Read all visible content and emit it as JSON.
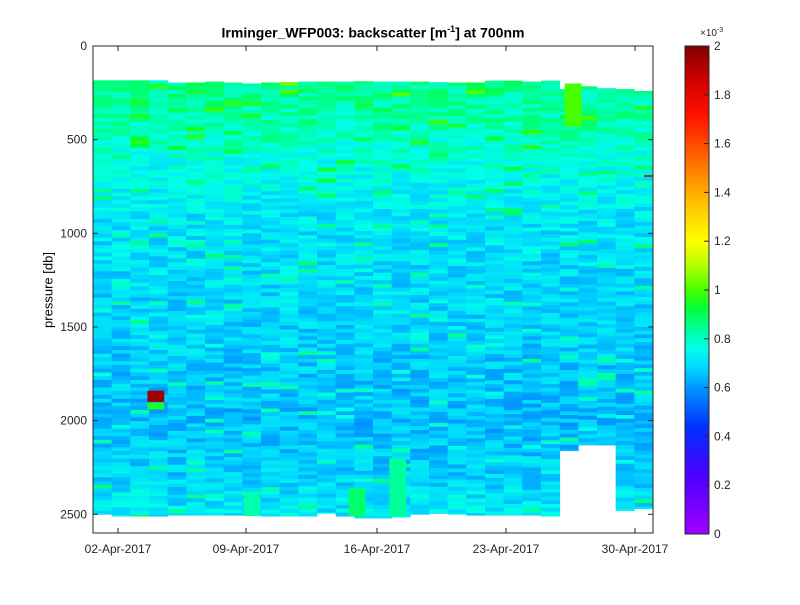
{
  "chart_data": {
    "type": "heatmap",
    "title_main": "Irminger_WFP003:  backscatter [m",
    "title_sup": "-1",
    "title_end": "] at 700nm",
    "ylabel": "pressure [db]",
    "yticks": [
      0,
      500,
      1000,
      1500,
      2000,
      2500
    ],
    "ylim": [
      0,
      2600
    ],
    "y_reversed": true,
    "xticks": [
      "02-Apr-2017",
      "09-Apr-2017",
      "16-Apr-2017",
      "23-Apr-2017",
      "30-Apr-2017"
    ],
    "colorbar": {
      "ticks": [
        "0",
        "0.2",
        "0.4",
        "0.6",
        "0.8",
        "1",
        "1.2",
        "1.4",
        "1.6",
        "1.8",
        "2"
      ],
      "exponent": "×10",
      "exponent_sup": "-3",
      "range": [
        0,
        0.002
      ],
      "colormap": "jet-like (violet → blue → cyan → green → yellow → red → dark red)"
    },
    "profiles": {
      "count": 30,
      "surface_top_db": [
        183,
        183,
        183,
        183,
        195,
        195,
        190,
        195,
        200,
        195,
        193,
        190,
        190,
        190,
        188,
        190,
        190,
        190,
        193,
        195,
        195,
        185,
        185,
        190,
        185,
        230,
        215,
        225,
        230,
        240
      ],
      "bottom_db": [
        2500,
        2510,
        2510,
        2510,
        2505,
        2505,
        2505,
        2505,
        2505,
        2510,
        2510,
        2510,
        2495,
        2510,
        2520,
        2520,
        2515,
        2500,
        2495,
        2500,
        2505,
        2505,
        2505,
        2505,
        2510,
        2160,
        2130,
        2130,
        2480,
        2470
      ]
    },
    "background_value_1e3": 0.68,
    "depth_profile_1e3": [
      {
        "p": 180,
        "v": 0.85
      },
      {
        "p": 400,
        "v": 0.82
      },
      {
        "p": 650,
        "v": 0.76
      },
      {
        "p": 900,
        "v": 0.71
      },
      {
        "p": 1500,
        "v": 0.68
      },
      {
        "p": 2000,
        "v": 0.65
      },
      {
        "p": 2300,
        "v": 0.68
      },
      {
        "p": 2520,
        "v": 0.72
      }
    ],
    "features_1e3": [
      {
        "day": 3.1,
        "p_top": 1840,
        "p_bot": 1900,
        "v": 1.95,
        "label": "high-backscatter spike"
      },
      {
        "day": 3.1,
        "p_top": 1905,
        "p_bot": 1940,
        "v": 0.95
      },
      {
        "day": 25.7,
        "p_top": 200,
        "p_bot": 430,
        "v": 1.0
      },
      {
        "day": 8.3,
        "p_top": 2380,
        "p_bot": 2510,
        "v": 0.82
      },
      {
        "day": 14.0,
        "p_top": 2360,
        "p_bot": 2510,
        "v": 0.88
      },
      {
        "day": 16.2,
        "p_top": 2200,
        "p_bot": 2510,
        "v": 0.84
      },
      {
        "day": 30.0,
        "p_top": 690,
        "p_bot": 695,
        "v": 1.9
      }
    ]
  }
}
